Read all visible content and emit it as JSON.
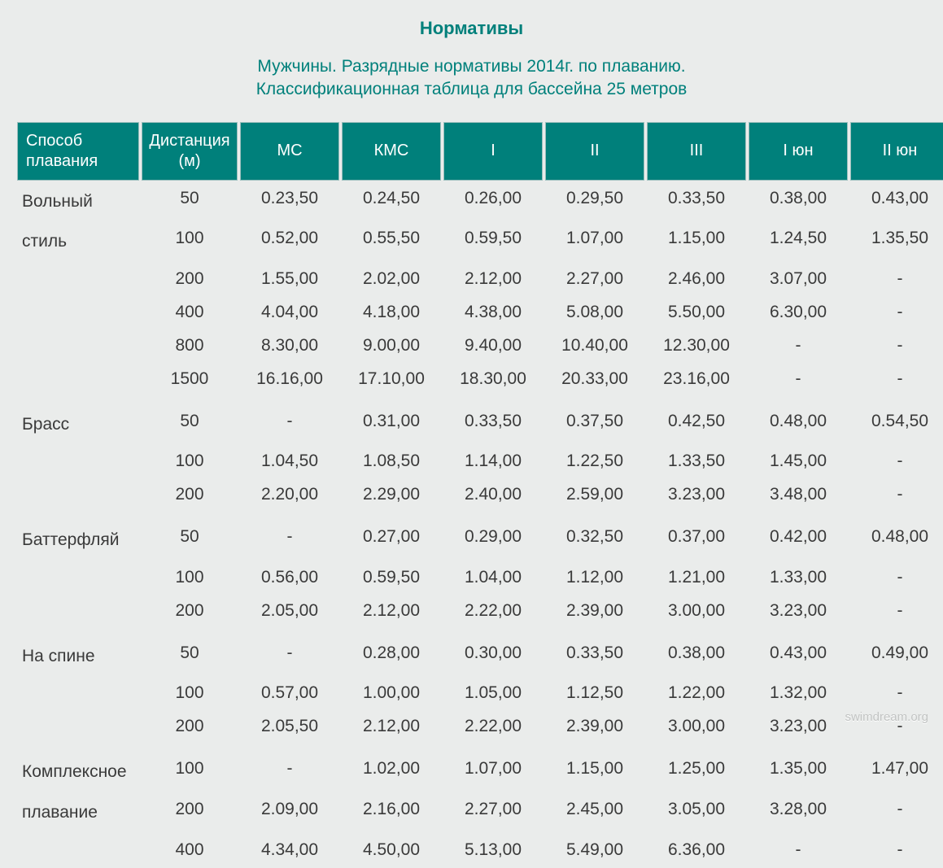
{
  "colors": {
    "background": "#eaeceb",
    "header_bg": "#00807b",
    "header_text": "#ffffff",
    "header_border": "#9bbfbd",
    "title_text": "#00807b",
    "body_text": "#3a3a3a",
    "watermark": "#c2c4c3"
  },
  "title": "Нормативы",
  "subtitle_line1": "Мужчины. Разрядные нормативы 2014г. по плаванию.",
  "subtitle_line2": "Классификационная таблица для бассейна 25 метров",
  "watermark": "swimdream.org",
  "columns": [
    "Способ плавания",
    "Дистанция (м)",
    "МС",
    "КМС",
    "I",
    "II",
    "III",
    "I юн",
    "II юн"
  ],
  "groups": [
    {
      "style_lines": [
        "Вольный",
        "стиль"
      ],
      "rows": [
        {
          "dist": "50",
          "v": [
            "0.23,50",
            "0.24,50",
            "0.26,00",
            "0.29,50",
            "0.33,50",
            "0.38,00",
            "0.43,00"
          ]
        },
        {
          "dist": "100",
          "v": [
            "0.52,00",
            "0.55,50",
            "0.59,50",
            "1.07,00",
            "1.15,00",
            "1.24,50",
            "1.35,50"
          ]
        },
        {
          "dist": "200",
          "v": [
            "1.55,00",
            "2.02,00",
            "2.12,00",
            "2.27,00",
            "2.46,00",
            "3.07,00",
            "-"
          ]
        },
        {
          "dist": "400",
          "v": [
            "4.04,00",
            "4.18,00",
            "4.38,00",
            "5.08,00",
            "5.50,00",
            "6.30,00",
            "-"
          ]
        },
        {
          "dist": "800",
          "v": [
            "8.30,00",
            "9.00,00",
            "9.40,00",
            "10.40,00",
            "12.30,00",
            "-",
            "-"
          ]
        },
        {
          "dist": "1500",
          "v": [
            "16.16,00",
            "17.10,00",
            "18.30,00",
            "20.33,00",
            "23.16,00",
            "-",
            "-"
          ]
        }
      ]
    },
    {
      "style_lines": [
        "Брасс"
      ],
      "rows": [
        {
          "dist": "50",
          "v": [
            "-",
            "0.31,00",
            "0.33,50",
            "0.37,50",
            "0.42,50",
            "0.48,00",
            "0.54,50"
          ]
        },
        {
          "dist": "100",
          "v": [
            "1.04,50",
            "1.08,50",
            "1.14,00",
            "1.22,50",
            "1.33,50",
            "1.45,00",
            "-"
          ]
        },
        {
          "dist": "200",
          "v": [
            "2.20,00",
            "2.29,00",
            "2.40,00",
            "2.59,00",
            "3.23,00",
            "3.48,00",
            "-"
          ]
        }
      ]
    },
    {
      "style_lines": [
        "Баттерфляй"
      ],
      "rows": [
        {
          "dist": "50",
          "v": [
            "-",
            "0.27,00",
            "0.29,00",
            "0.32,50",
            "0.37,00",
            "0.42,00",
            "0.48,00"
          ]
        },
        {
          "dist": "100",
          "v": [
            "0.56,00",
            "0.59,50",
            "1.04,00",
            "1.12,00",
            "1.21,00",
            "1.33,00",
            "-"
          ]
        },
        {
          "dist": "200",
          "v": [
            "2.05,00",
            "2.12,00",
            "2.22,00",
            "2.39,00",
            "3.00,00",
            "3.23,00",
            "-"
          ]
        }
      ]
    },
    {
      "style_lines": [
        "На спине"
      ],
      "rows": [
        {
          "dist": "50",
          "v": [
            "-",
            "0.28,00",
            "0.30,00",
            "0.33,50",
            "0.38,00",
            "0.43,00",
            "0.49,00"
          ]
        },
        {
          "dist": "100",
          "v": [
            "0.57,00",
            "1.00,00",
            "1.05,00",
            "1.12,50",
            "1.22,00",
            "1.32,00",
            "-"
          ]
        },
        {
          "dist": "200",
          "v": [
            "2.05,50",
            "2.12,00",
            "2.22,00",
            "2.39,00",
            "3.00,00",
            "3.23,00",
            "-"
          ]
        }
      ]
    },
    {
      "style_lines": [
        "Комплексное",
        "плавание"
      ],
      "rows": [
        {
          "dist": "100",
          "v": [
            "-",
            "1.02,00",
            "1.07,00",
            "1.15,00",
            "1.25,00",
            "1.35,00",
            "1.47,00"
          ]
        },
        {
          "dist": "200",
          "v": [
            "2.09,00",
            "2.16,00",
            "2.27,00",
            "2.45,00",
            "3.05,00",
            "3.28,00",
            "-"
          ]
        },
        {
          "dist": "400",
          "v": [
            "4.34,00",
            "4.50,00",
            "5.13,00",
            "5.49,00",
            "6.36,00",
            "-",
            "-"
          ]
        }
      ]
    }
  ]
}
